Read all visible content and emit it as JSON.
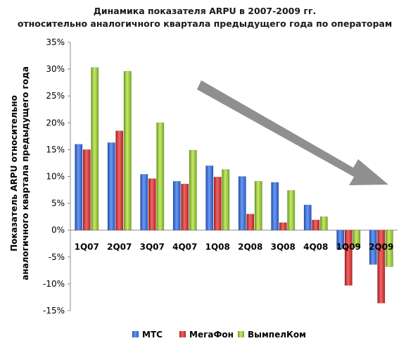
{
  "chart_data": {
    "type": "bar",
    "title_lines": [
      "Динамика показателя ARPU в 2007-2009 гг.",
      "относительно аналогичного квартала предыдущего года по операторам"
    ],
    "ylabel_lines": [
      "Показатель ARPU относительно",
      "аналогичного квартала предыдущего года"
    ],
    "xlabel": "",
    "ylim": [
      -15,
      35
    ],
    "y_step": 5,
    "y_unit": "%",
    "grid": false,
    "legend_position": "bottom",
    "categories": [
      "1Q07",
      "2Q07",
      "3Q07",
      "4Q07",
      "1Q08",
      "2Q08",
      "3Q08",
      "4Q08",
      "1Q09",
      "2Q09"
    ],
    "series": [
      {
        "name": "МТС",
        "color": "#3a6fd6",
        "values": [
          16.0,
          16.3,
          10.4,
          9.1,
          12.0,
          10.0,
          8.9,
          4.7,
          -3.5,
          -6.4
        ]
      },
      {
        "name": "МегаФон",
        "color": "#d63a3a",
        "values": [
          15.0,
          18.5,
          9.6,
          8.6,
          9.9,
          3.0,
          1.4,
          1.9,
          -10.3,
          -13.6
        ]
      },
      {
        "name": "ВымпелКом",
        "color": "#94c43a",
        "values": [
          30.3,
          29.6,
          20.0,
          14.9,
          11.3,
          9.1,
          7.4,
          2.5,
          -3.3,
          -6.8
        ]
      }
    ],
    "annotations": [
      {
        "kind": "arrow",
        "color": "#808080",
        "description": "downward trend arrow"
      }
    ]
  }
}
